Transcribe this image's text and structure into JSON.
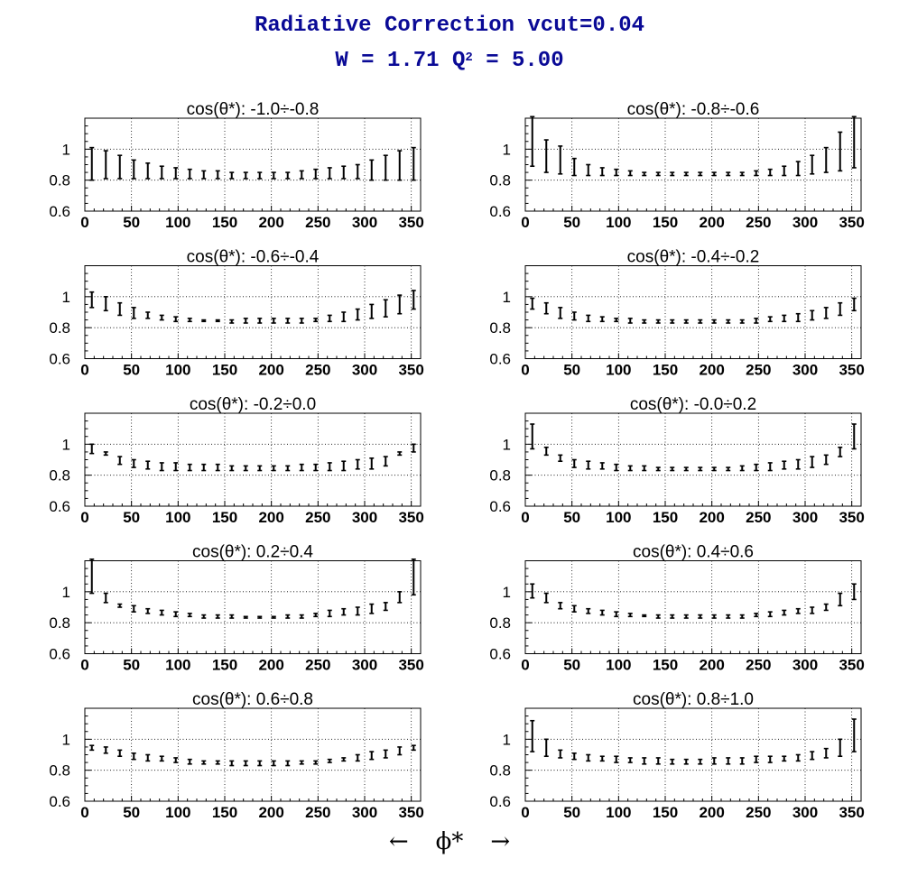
{
  "title": {
    "main": "Radiative Correction  vcut=0.04",
    "w_part": "W = 1.71  Q",
    "q_exp": "2",
    "q_part": " = 5.00"
  },
  "x_caption": {
    "left_arrow": "←",
    "symbol": "ϕ*",
    "right_arrow": "→"
  },
  "chart_data": {
    "type": "scatter",
    "x_ticks": [
      0,
      50,
      100,
      150,
      200,
      250,
      300,
      350
    ],
    "y_ticks": [
      0.6,
      0.8,
      1
    ],
    "y_tick_labels": [
      "0.6",
      "0.8",
      "1"
    ],
    "xlim": [
      0,
      360
    ],
    "ylim": [
      0.6,
      1.2
    ],
    "grid": true,
    "x": [
      7.5,
      22.5,
      37.5,
      52.5,
      67.5,
      82.5,
      97.5,
      112.5,
      127.5,
      142.5,
      157.5,
      172.5,
      187.5,
      202.5,
      217.5,
      232.5,
      247.5,
      262.5,
      277.5,
      292.5,
      307.5,
      322.5,
      337.5,
      352.5
    ],
    "panels": [
      {
        "label": "cos(θ*): -1.0÷-0.8",
        "lo": [
          0.8,
          0.81,
          0.81,
          0.81,
          0.81,
          0.81,
          0.81,
          0.81,
          0.81,
          0.81,
          0.81,
          0.81,
          0.81,
          0.81,
          0.81,
          0.81,
          0.81,
          0.81,
          0.81,
          0.81,
          0.8,
          0.8,
          0.8,
          0.8
        ],
        "hi": [
          1.01,
          0.99,
          0.96,
          0.93,
          0.91,
          0.89,
          0.88,
          0.87,
          0.86,
          0.86,
          0.85,
          0.85,
          0.85,
          0.85,
          0.85,
          0.86,
          0.87,
          0.88,
          0.89,
          0.9,
          0.93,
          0.96,
          0.99,
          1.01
        ]
      },
      {
        "label": "cos(θ*): -0.8÷-0.6",
        "lo": [
          0.89,
          0.85,
          0.84,
          0.83,
          0.83,
          0.83,
          0.83,
          0.83,
          0.83,
          0.83,
          0.83,
          0.83,
          0.83,
          0.83,
          0.83,
          0.83,
          0.83,
          0.83,
          0.83,
          0.83,
          0.84,
          0.85,
          0.86,
          0.88
        ],
        "hi": [
          1.21,
          1.06,
          1.02,
          0.94,
          0.9,
          0.88,
          0.87,
          0.86,
          0.85,
          0.85,
          0.85,
          0.85,
          0.85,
          0.85,
          0.85,
          0.85,
          0.86,
          0.87,
          0.89,
          0.92,
          0.96,
          1.01,
          1.11,
          1.21
        ]
      },
      {
        "label": "cos(θ*): -0.6÷-0.4",
        "lo": [
          0.93,
          0.91,
          0.88,
          0.86,
          0.86,
          0.85,
          0.84,
          0.84,
          0.84,
          0.84,
          0.83,
          0.83,
          0.83,
          0.83,
          0.83,
          0.83,
          0.84,
          0.84,
          0.84,
          0.85,
          0.86,
          0.87,
          0.89,
          0.92
        ],
        "hi": [
          1.03,
          1.0,
          0.96,
          0.93,
          0.9,
          0.88,
          0.87,
          0.86,
          0.85,
          0.85,
          0.85,
          0.86,
          0.86,
          0.86,
          0.86,
          0.86,
          0.86,
          0.88,
          0.9,
          0.92,
          0.95,
          0.98,
          1.01,
          1.04
        ]
      },
      {
        "label": "cos(θ*): -0.4÷-0.2",
        "lo": [
          0.92,
          0.89,
          0.86,
          0.85,
          0.84,
          0.84,
          0.84,
          0.83,
          0.83,
          0.83,
          0.83,
          0.83,
          0.83,
          0.83,
          0.83,
          0.83,
          0.83,
          0.84,
          0.84,
          0.84,
          0.85,
          0.86,
          0.88,
          0.91
        ],
        "hi": [
          0.99,
          0.96,
          0.93,
          0.9,
          0.88,
          0.87,
          0.86,
          0.86,
          0.85,
          0.85,
          0.85,
          0.85,
          0.85,
          0.85,
          0.85,
          0.85,
          0.86,
          0.87,
          0.88,
          0.89,
          0.91,
          0.93,
          0.96,
          0.99
        ]
      },
      {
        "label": "cos(θ*): -0.2÷0.0",
        "lo": [
          0.94,
          0.93,
          0.87,
          0.85,
          0.84,
          0.83,
          0.83,
          0.83,
          0.83,
          0.83,
          0.83,
          0.83,
          0.83,
          0.83,
          0.83,
          0.83,
          0.83,
          0.83,
          0.83,
          0.84,
          0.84,
          0.86,
          0.93,
          0.95
        ],
        "hi": [
          1.0,
          0.95,
          0.92,
          0.9,
          0.89,
          0.88,
          0.88,
          0.87,
          0.87,
          0.87,
          0.86,
          0.86,
          0.86,
          0.86,
          0.86,
          0.87,
          0.87,
          0.88,
          0.89,
          0.9,
          0.91,
          0.92,
          0.95,
          1.0
        ]
      },
      {
        "label": "cos(θ*): -0.0÷0.2",
        "lo": [
          0.97,
          0.93,
          0.89,
          0.85,
          0.84,
          0.84,
          0.83,
          0.83,
          0.83,
          0.83,
          0.83,
          0.83,
          0.83,
          0.83,
          0.83,
          0.83,
          0.83,
          0.83,
          0.84,
          0.84,
          0.85,
          0.87,
          0.92,
          0.97
        ],
        "hi": [
          1.13,
          0.98,
          0.93,
          0.9,
          0.89,
          0.88,
          0.87,
          0.86,
          0.86,
          0.85,
          0.85,
          0.85,
          0.85,
          0.85,
          0.85,
          0.86,
          0.87,
          0.88,
          0.89,
          0.9,
          0.92,
          0.93,
          0.98,
          1.13
        ]
      },
      {
        "label": "cos(θ*): 0.2÷0.4",
        "lo": [
          0.99,
          0.93,
          0.9,
          0.87,
          0.86,
          0.85,
          0.84,
          0.84,
          0.83,
          0.83,
          0.83,
          0.83,
          0.83,
          0.83,
          0.83,
          0.83,
          0.84,
          0.84,
          0.85,
          0.85,
          0.86,
          0.88,
          0.93,
          0.98
        ],
        "hi": [
          1.21,
          0.99,
          0.92,
          0.91,
          0.89,
          0.88,
          0.87,
          0.86,
          0.85,
          0.85,
          0.85,
          0.84,
          0.84,
          0.84,
          0.85,
          0.85,
          0.86,
          0.88,
          0.89,
          0.9,
          0.92,
          0.93,
          1.0,
          1.21
        ]
      },
      {
        "label": "cos(θ*): 0.4÷0.6",
        "lo": [
          0.96,
          0.93,
          0.89,
          0.87,
          0.86,
          0.85,
          0.84,
          0.84,
          0.84,
          0.83,
          0.83,
          0.83,
          0.83,
          0.83,
          0.83,
          0.83,
          0.84,
          0.84,
          0.85,
          0.86,
          0.86,
          0.88,
          0.91,
          0.95
        ],
        "hi": [
          1.05,
          0.99,
          0.93,
          0.91,
          0.89,
          0.88,
          0.87,
          0.86,
          0.85,
          0.85,
          0.85,
          0.85,
          0.85,
          0.85,
          0.85,
          0.85,
          0.86,
          0.87,
          0.88,
          0.89,
          0.9,
          0.92,
          0.99,
          1.05
        ]
      },
      {
        "label": "cos(θ*): 0.6÷0.8",
        "lo": [
          0.93,
          0.91,
          0.89,
          0.87,
          0.86,
          0.86,
          0.85,
          0.84,
          0.84,
          0.84,
          0.83,
          0.83,
          0.83,
          0.83,
          0.83,
          0.84,
          0.84,
          0.85,
          0.86,
          0.86,
          0.87,
          0.88,
          0.9,
          0.93
        ],
        "hi": [
          0.96,
          0.95,
          0.93,
          0.91,
          0.9,
          0.89,
          0.88,
          0.87,
          0.86,
          0.86,
          0.86,
          0.86,
          0.86,
          0.86,
          0.86,
          0.86,
          0.86,
          0.87,
          0.88,
          0.9,
          0.92,
          0.93,
          0.95,
          0.96
        ]
      },
      {
        "label": "cos(θ*): 0.8÷1.0",
        "lo": [
          0.92,
          0.89,
          0.88,
          0.87,
          0.86,
          0.86,
          0.85,
          0.85,
          0.84,
          0.84,
          0.84,
          0.84,
          0.84,
          0.84,
          0.84,
          0.84,
          0.85,
          0.85,
          0.86,
          0.86,
          0.87,
          0.88,
          0.89,
          0.92
        ],
        "hi": [
          1.12,
          1.0,
          0.93,
          0.91,
          0.9,
          0.89,
          0.89,
          0.88,
          0.88,
          0.88,
          0.87,
          0.87,
          0.87,
          0.88,
          0.88,
          0.88,
          0.89,
          0.89,
          0.89,
          0.9,
          0.92,
          0.94,
          1.0,
          1.13
        ]
      }
    ]
  }
}
